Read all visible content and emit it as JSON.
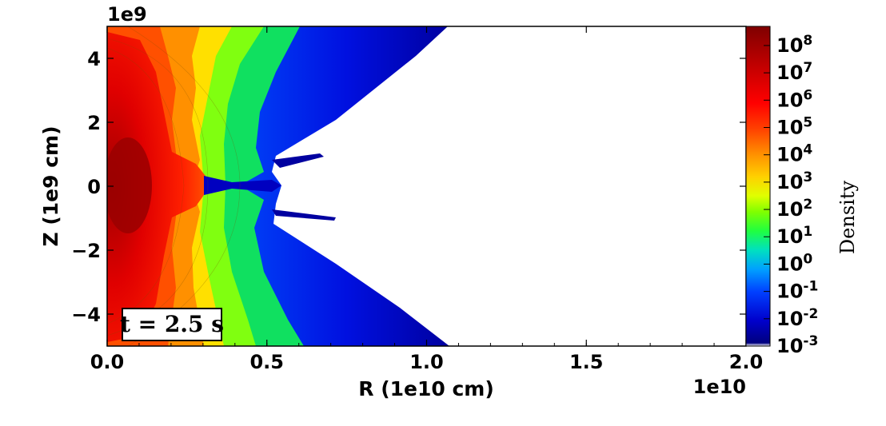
{
  "chart_data": {
    "type": "heatmap",
    "title": "",
    "xlabel": "R (1e10 cm)",
    "ylabel": "Z (1e9 cm)",
    "x_scale_label": "1e10",
    "y_scale_label": "1e9",
    "xlim": [
      0.0,
      2.0
    ],
    "ylim": [
      -5,
      5
    ],
    "x_ticks": [
      "0.0",
      "0.5",
      "1.0",
      "1.5",
      "2.0"
    ],
    "y_ticks": [
      "4",
      "2",
      "0",
      "−2",
      "−4"
    ],
    "x_tick_values": [
      0.0,
      0.5,
      1.0,
      1.5,
      2.0
    ],
    "y_tick_values": [
      4,
      2,
      0,
      -2,
      -4
    ],
    "annotation": "t = 2.5 s",
    "colorbar": {
      "label": "Density",
      "scale": "log",
      "range": [
        -3,
        8.7
      ],
      "ticks": [
        {
          "base": "10",
          "exp": "8",
          "value": 8
        },
        {
          "base": "10",
          "exp": "7",
          "value": 7
        },
        {
          "base": "10",
          "exp": "6",
          "value": 6
        },
        {
          "base": "10",
          "exp": "5",
          "value": 5
        },
        {
          "base": "10",
          "exp": "4",
          "value": 4
        },
        {
          "base": "10",
          "exp": "3",
          "value": 3
        },
        {
          "base": "10",
          "exp": "2",
          "value": 2
        },
        {
          "base": "10",
          "exp": "1",
          "value": 1
        },
        {
          "base": "10",
          "exp": "0",
          "value": 0
        },
        {
          "base": "10",
          "exp": "-1",
          "value": -1
        },
        {
          "base": "10",
          "exp": "-2",
          "value": -2
        },
        {
          "base": "10",
          "exp": "-3",
          "value": -3
        }
      ],
      "colors": [
        "#ffffff",
        "#00007f",
        "#0000ff",
        "#0060ff",
        "#00c0ff",
        "#00ff80",
        "#40ff00",
        "#c0ff00",
        "#ffe000",
        "#ff9000",
        "#ff4000",
        "#ff0000",
        "#c00000",
        "#7f0000"
      ]
    }
  }
}
